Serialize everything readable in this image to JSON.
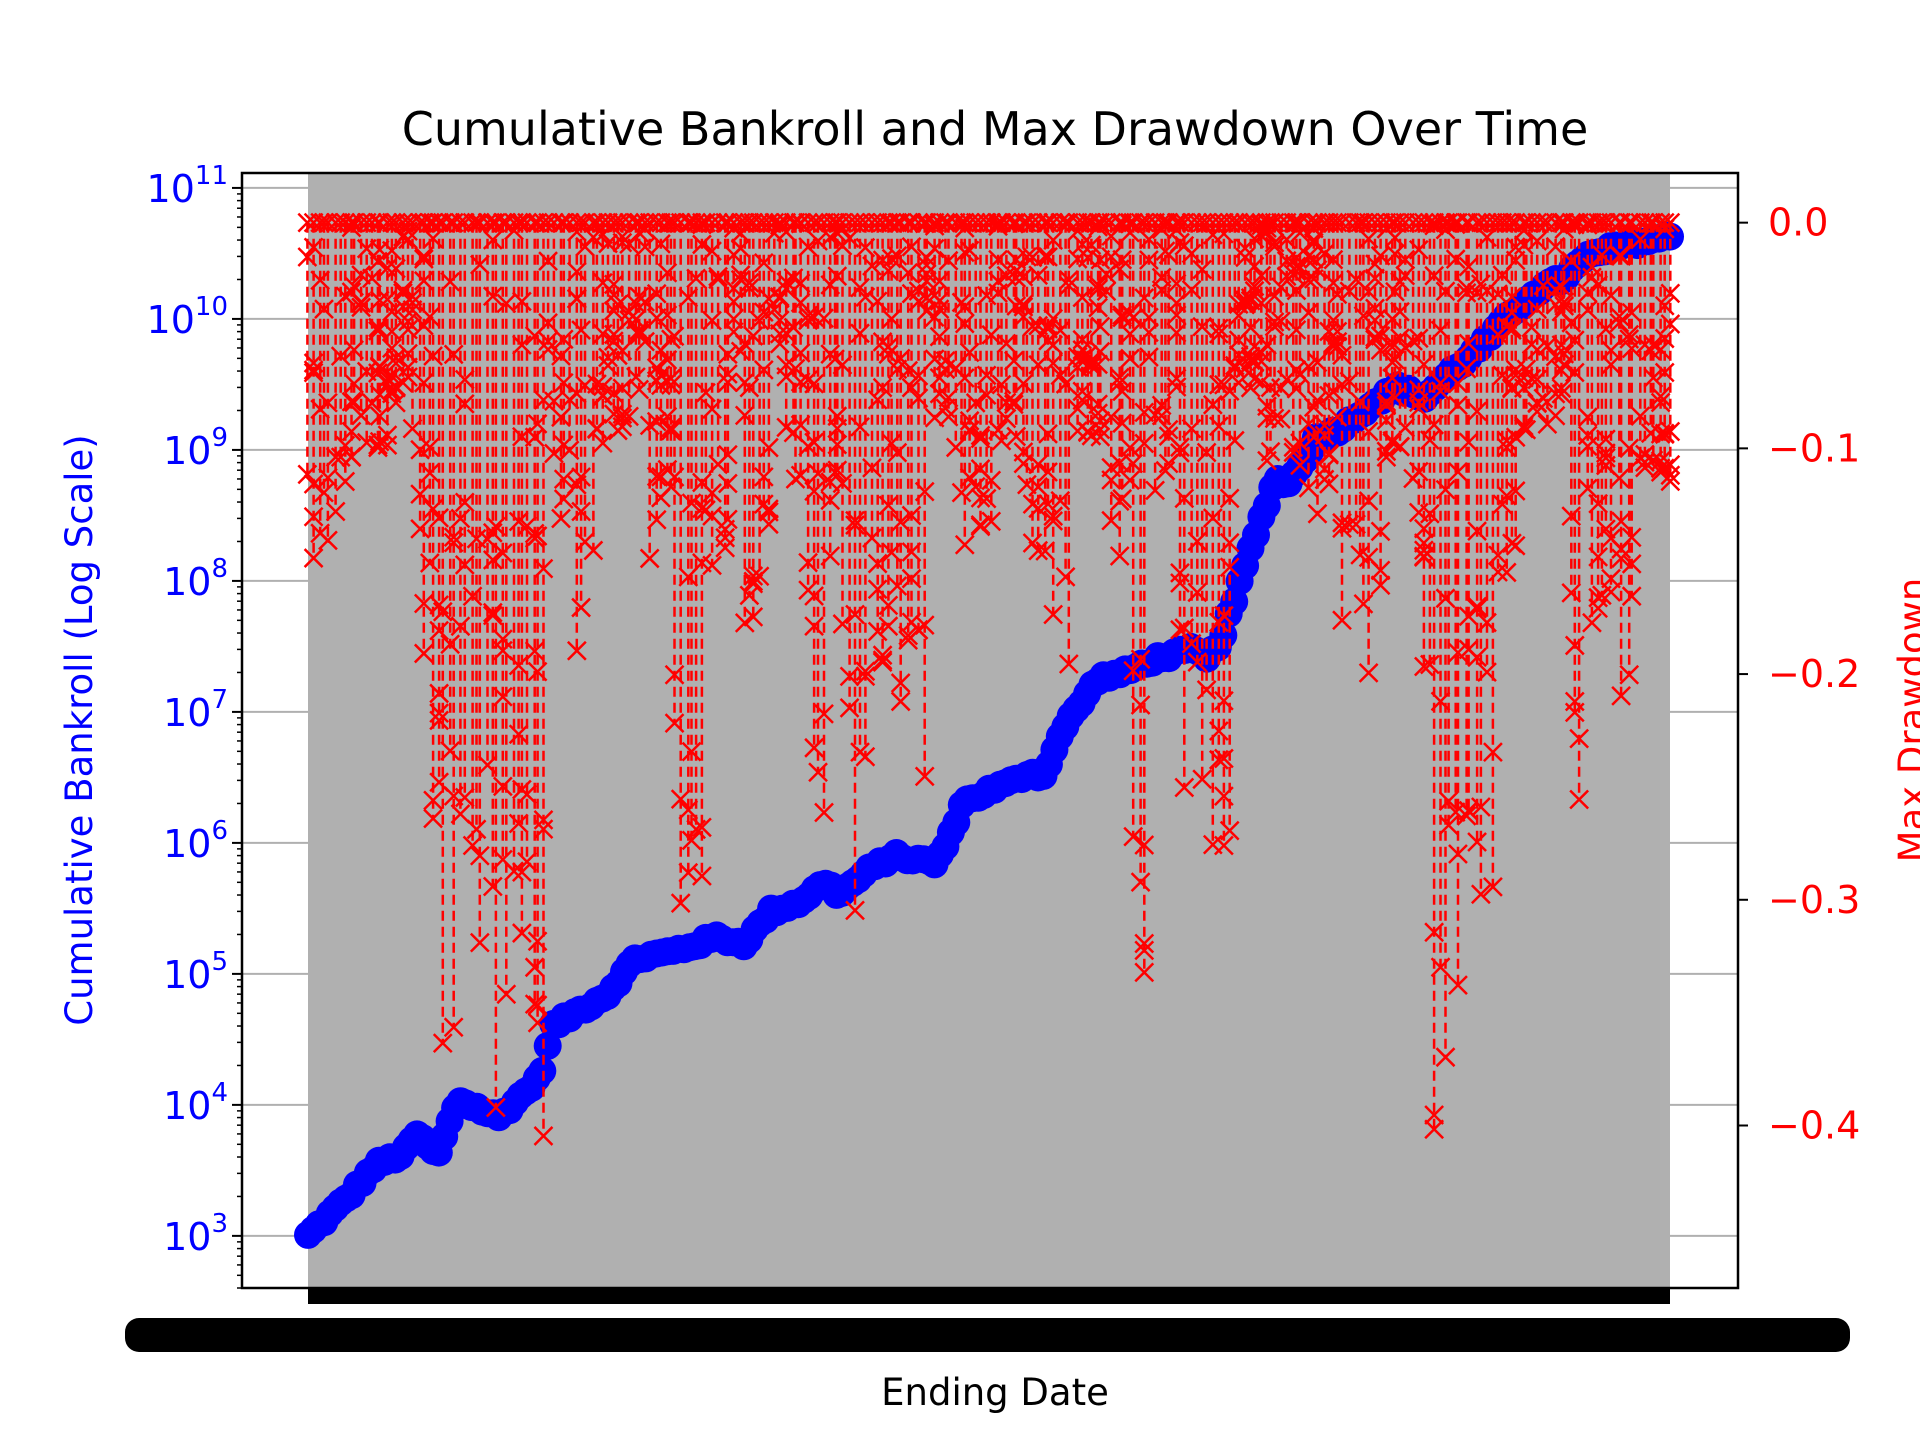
{
  "chart_data": {
    "type": "line",
    "title": "Cumulative Bankroll and Max Drawdown Over Time",
    "xlabel": "Ending Date",
    "x_tick_labels_note": "",
    "background_band_color": "#b0b0b0",
    "grid": true,
    "left_axis": {
      "label": "Cumulative Bankroll (Log Scale)",
      "scale": "log",
      "ylim": [
        400,
        130000000000
      ],
      "ticks": [
        {
          "value": 1000,
          "base": "10",
          "exp": "3"
        },
        {
          "value": 10000,
          "base": "10",
          "exp": "4"
        },
        {
          "value": 100000,
          "base": "10",
          "exp": "5"
        },
        {
          "value": 1000000,
          "base": "10",
          "exp": "6"
        },
        {
          "value": 10000000,
          "base": "10",
          "exp": "7"
        },
        {
          "value": 100000000,
          "base": "10",
          "exp": "8"
        },
        {
          "value": 1000000000,
          "base": "10",
          "exp": "9"
        },
        {
          "value": 10000000000,
          "base": "10",
          "exp": "10"
        },
        {
          "value": 100000000000,
          "base": "10",
          "exp": "11"
        }
      ],
      "color": "#0000ff"
    },
    "right_axis": {
      "label": "Max Drawdown",
      "scale": "linear",
      "ylim": [
        -0.472,
        0.022
      ],
      "ticks": [
        {
          "value": 0.0,
          "label": "0.0"
        },
        {
          "value": -0.1,
          "label": "−0.1"
        },
        {
          "value": -0.2,
          "label": "−0.2"
        },
        {
          "value": -0.3,
          "label": "−0.3"
        },
        {
          "value": -0.4,
          "label": "−0.4"
        }
      ],
      "color": "#ff0000"
    },
    "series": [
      {
        "axis": "left",
        "color": "#0000ff",
        "marker": "circle",
        "x_range": [
          0,
          1
        ],
        "control_points": [
          [
            0.0,
            1000
          ],
          [
            0.03,
            2000
          ],
          [
            0.05,
            3500
          ],
          [
            0.07,
            4200
          ],
          [
            0.08,
            6000
          ],
          [
            0.095,
            4000
          ],
          [
            0.11,
            11000
          ],
          [
            0.14,
            8000
          ],
          [
            0.17,
            16000
          ],
          [
            0.18,
            40000
          ],
          [
            0.22,
            70000
          ],
          [
            0.24,
            130000
          ],
          [
            0.27,
            150000
          ],
          [
            0.3,
            190000
          ],
          [
            0.32,
            170000
          ],
          [
            0.34,
            300000
          ],
          [
            0.36,
            350000
          ],
          [
            0.38,
            500000
          ],
          [
            0.39,
            400000
          ],
          [
            0.41,
            600000
          ],
          [
            0.43,
            800000
          ],
          [
            0.46,
            700000
          ],
          [
            0.47,
            1000000
          ],
          [
            0.48,
            2000000
          ],
          [
            0.5,
            2500000
          ],
          [
            0.52,
            3000000
          ],
          [
            0.53,
            3500000
          ],
          [
            0.54,
            3200000
          ],
          [
            0.55,
            6000000
          ],
          [
            0.56,
            9000000
          ],
          [
            0.58,
            18000000
          ],
          [
            0.6,
            20000000
          ],
          [
            0.62,
            25000000
          ],
          [
            0.65,
            30000000
          ],
          [
            0.66,
            25000000
          ],
          [
            0.67,
            35000000
          ],
          [
            0.68,
            70000000
          ],
          [
            0.69,
            150000000
          ],
          [
            0.7,
            300000000
          ],
          [
            0.71,
            600000000
          ],
          [
            0.72,
            550000000
          ],
          [
            0.74,
            1200000000
          ],
          [
            0.76,
            1500000000
          ],
          [
            0.78,
            2200000000
          ],
          [
            0.8,
            3000000000
          ],
          [
            0.82,
            2500000000
          ],
          [
            0.84,
            4000000000
          ],
          [
            0.86,
            6000000000
          ],
          [
            0.88,
            10000000000
          ],
          [
            0.9,
            16000000000
          ],
          [
            0.92,
            20000000000
          ],
          [
            0.94,
            30000000000
          ],
          [
            0.97,
            38000000000
          ],
          [
            1.0,
            42000000000
          ]
        ]
      },
      {
        "axis": "right",
        "color": "#ff0000",
        "marker": "x",
        "linestyle": "dashed",
        "x_range": [
          0,
          1
        ],
        "value_range": [
          -0.45,
          0.0
        ],
        "trough_clusters": [
          [
            0.01,
            -0.15
          ],
          [
            0.03,
            -0.12
          ],
          [
            0.05,
            -0.1
          ],
          [
            0.07,
            -0.1
          ],
          [
            0.09,
            -0.21
          ],
          [
            0.095,
            -0.27
          ],
          [
            0.105,
            -0.38
          ],
          [
            0.13,
            -0.33
          ],
          [
            0.135,
            -0.44
          ],
          [
            0.15,
            -0.42
          ],
          [
            0.165,
            -0.45
          ],
          [
            0.19,
            -0.14
          ],
          [
            0.2,
            -0.21
          ],
          [
            0.23,
            -0.1
          ],
          [
            0.26,
            -0.16
          ],
          [
            0.28,
            -0.31
          ],
          [
            0.3,
            -0.17
          ],
          [
            0.33,
            -0.18
          ],
          [
            0.36,
            -0.13
          ],
          [
            0.37,
            -0.27
          ],
          [
            0.39,
            -0.18
          ],
          [
            0.395,
            -0.27
          ],
          [
            0.4,
            -0.35
          ],
          [
            0.42,
            -0.2
          ],
          [
            0.43,
            -0.22
          ],
          [
            0.44,
            -0.28
          ],
          [
            0.49,
            -0.16
          ],
          [
            0.52,
            -0.11
          ],
          [
            0.53,
            -0.15
          ],
          [
            0.55,
            -0.2
          ],
          [
            0.57,
            -0.13
          ],
          [
            0.6,
            -0.19
          ],
          [
            0.6,
            -0.24
          ],
          [
            0.6,
            -0.3
          ],
          [
            0.605,
            -0.34
          ],
          [
            0.63,
            -0.12
          ],
          [
            0.63,
            -0.32
          ],
          [
            0.65,
            -0.28
          ],
          [
            0.66,
            -0.3
          ],
          [
            0.665,
            -0.33
          ],
          [
            0.69,
            -0.1
          ],
          [
            0.72,
            -0.11
          ],
          [
            0.74,
            -0.15
          ],
          [
            0.77,
            -0.21
          ],
          [
            0.8,
            -0.11
          ],
          [
            0.81,
            -0.15
          ],
          [
            0.82,
            -0.24
          ],
          [
            0.83,
            -0.41
          ],
          [
            0.84,
            -0.34
          ],
          [
            0.855,
            -0.28
          ],
          [
            0.86,
            -0.32
          ],
          [
            0.88,
            -0.19
          ],
          [
            0.9,
            -0.1
          ],
          [
            0.92,
            -0.09
          ],
          [
            0.93,
            -0.26
          ],
          [
            0.94,
            -0.18
          ],
          [
            0.96,
            -0.17
          ],
          [
            0.97,
            -0.21
          ],
          [
            0.98,
            -0.13
          ],
          [
            0.99,
            -0.15
          ]
        ]
      }
    ]
  }
}
